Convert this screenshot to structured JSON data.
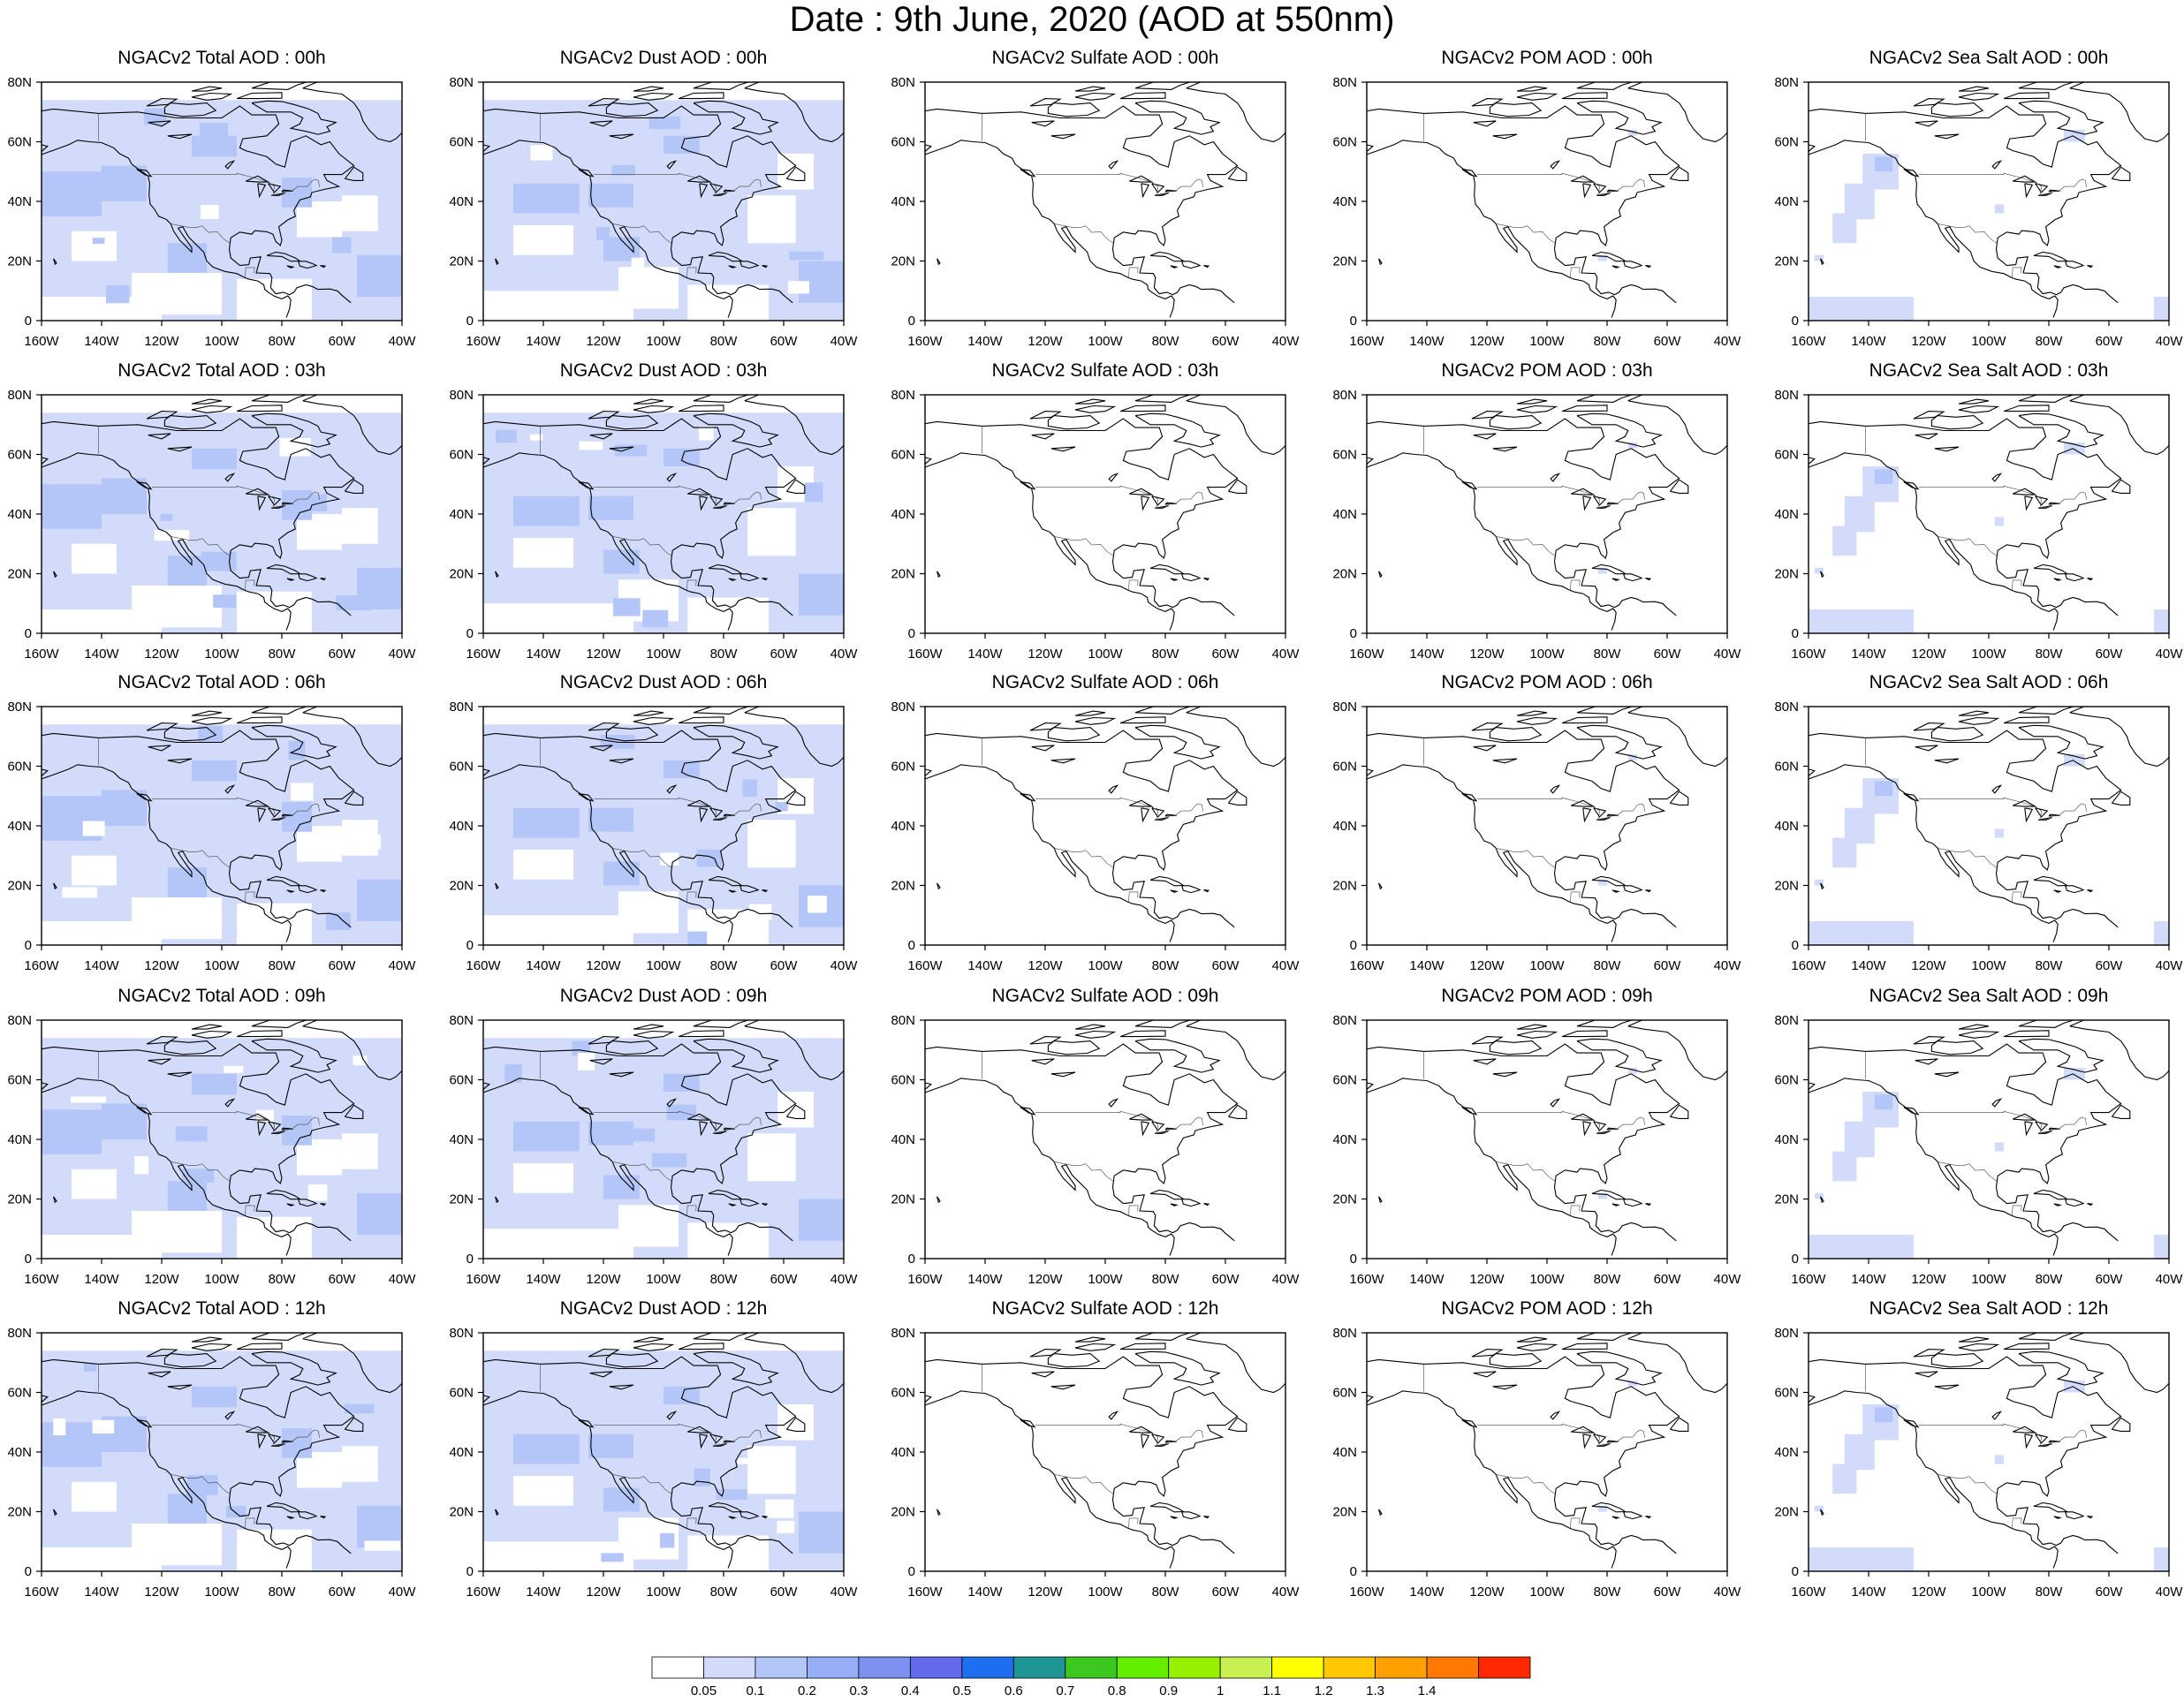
{
  "title": "Date : 9th June, 2020 (AOD at 550nm)",
  "panels": [
    {
      "title": "NGACv2 Total AOD : 00h",
      "species": "total",
      "hour": "00h"
    },
    {
      "title": "NGACv2 Dust AOD : 00h",
      "species": "dust",
      "hour": "00h"
    },
    {
      "title": "NGACv2 Sulfate AOD : 00h",
      "species": "sulfate",
      "hour": "00h"
    },
    {
      "title": "NGACv2 POM AOD : 00h",
      "species": "pom",
      "hour": "00h"
    },
    {
      "title": "NGACv2 Sea Salt AOD : 00h",
      "species": "seasalt",
      "hour": "00h"
    },
    {
      "title": "NGACv2 Total AOD : 03h",
      "species": "total",
      "hour": "03h"
    },
    {
      "title": "NGACv2 Dust AOD : 03h",
      "species": "dust",
      "hour": "03h"
    },
    {
      "title": "NGACv2 Sulfate AOD : 03h",
      "species": "sulfate",
      "hour": "03h"
    },
    {
      "title": "NGACv2 POM AOD : 03h",
      "species": "pom",
      "hour": "03h"
    },
    {
      "title": "NGACv2 Sea Salt AOD : 03h",
      "species": "seasalt",
      "hour": "03h"
    },
    {
      "title": "NGACv2 Total AOD : 06h",
      "species": "total",
      "hour": "06h"
    },
    {
      "title": "NGACv2 Dust AOD : 06h",
      "species": "dust",
      "hour": "06h"
    },
    {
      "title": "NGACv2 Sulfate AOD : 06h",
      "species": "sulfate",
      "hour": "06h"
    },
    {
      "title": "NGACv2 POM AOD : 06h",
      "species": "pom",
      "hour": "06h"
    },
    {
      "title": "NGACv2 Sea Salt AOD : 06h",
      "species": "seasalt",
      "hour": "06h"
    },
    {
      "title": "NGACv2 Total AOD : 09h",
      "species": "total",
      "hour": "09h"
    },
    {
      "title": "NGACv2 Dust AOD : 09h",
      "species": "dust",
      "hour": "09h"
    },
    {
      "title": "NGACv2 Sulfate AOD : 09h",
      "species": "sulfate",
      "hour": "09h"
    },
    {
      "title": "NGACv2 POM AOD : 09h",
      "species": "pom",
      "hour": "09h"
    },
    {
      "title": "NGACv2 Sea Salt  AOD : 09h",
      "species": "seasalt",
      "hour": "09h"
    },
    {
      "title": "NGACv2 Total AOD  : 12h",
      "species": "total",
      "hour": "12h"
    },
    {
      "title": "NGACv2 Dust AOD : 12h",
      "species": "dust",
      "hour": "12h"
    },
    {
      "title": "NGACv2 Sulfate AOD : 12h",
      "species": "sulfate",
      "hour": "12h"
    },
    {
      "title": "NGACv2 POM  AOD : 12h",
      "species": "pom",
      "hour": "12h"
    },
    {
      "title": "NGACv2 Sea Salt  AOD : 12h",
      "species": "seasalt",
      "hour": "12h"
    }
  ],
  "axes": {
    "x_ticks": [
      "160W",
      "140W",
      "120W",
      "100W",
      "80W",
      "60W",
      "40W"
    ],
    "y_ticks": [
      "0",
      "20N",
      "40N",
      "60N",
      "80N"
    ],
    "lon_range": [
      -160,
      -40
    ],
    "lat_range": [
      0,
      80
    ]
  },
  "colorbar": {
    "labels": [
      "0.05",
      "0.1",
      "0.2",
      "0.3",
      "0.4",
      "0.5",
      "0.6",
      "0.7",
      "0.8",
      "0.9",
      "1",
      "1.1",
      "1.2",
      "1.3",
      "1.4"
    ],
    "colors": [
      "#ffffff",
      "#d2dcfa",
      "#b4c5f8",
      "#96aef5",
      "#7d91f0",
      "#6469ec",
      "#1e6ef0",
      "#1e9696",
      "#3cc81e",
      "#64ee00",
      "#96f000",
      "#c8f050",
      "#ffff00",
      "#ffc800",
      "#ffa000",
      "#ff7800",
      "#ff2800"
    ]
  },
  "colors": {
    "aod_level_1": "#d2dcfa",
    "aod_level_2": "#b4c5f8",
    "coastline": "#000000"
  }
}
